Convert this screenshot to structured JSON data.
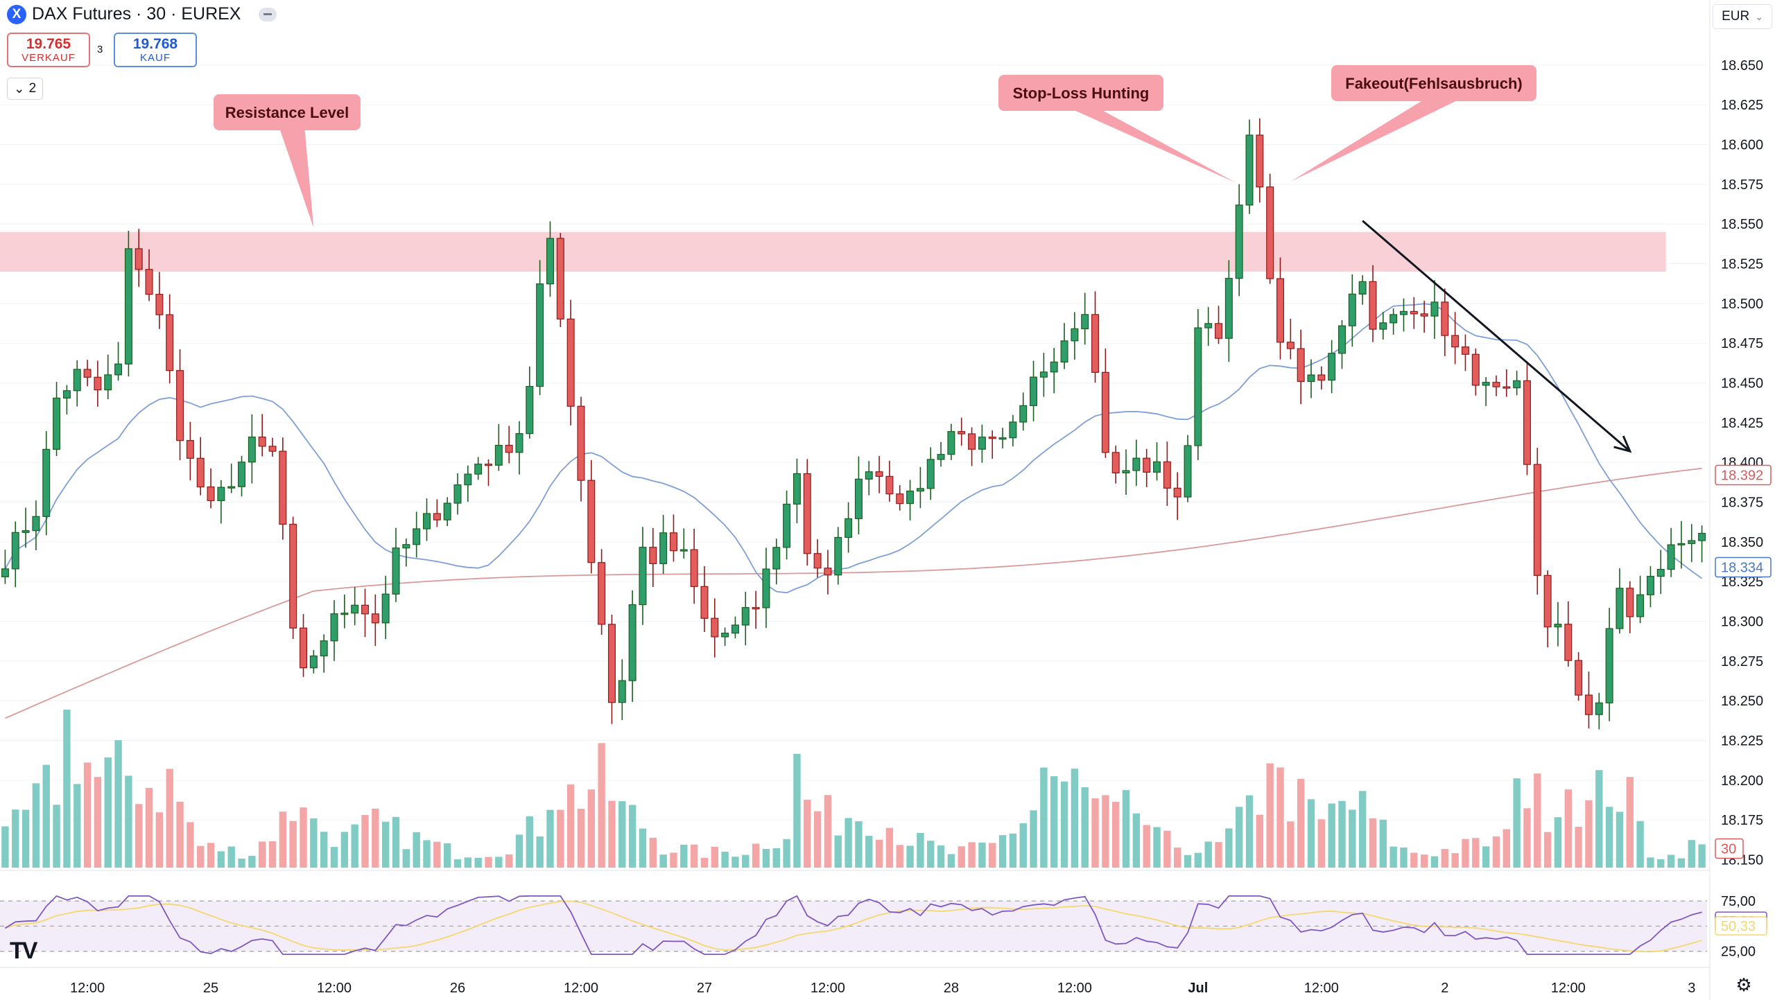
{
  "header": {
    "symbol": "DAX Futures · 30 · EUREX",
    "logo_glyph": "X",
    "sell_price": "19.765",
    "sell_label": "VERKAUF",
    "spread": "3",
    "buy_price": "19.768",
    "buy_label": "KAUF",
    "layers_count": "2",
    "currency": "EUR",
    "collapse_icon": "minus-icon",
    "layers_icon": "chevron-down-icon",
    "settings_icon": "gear-icon",
    "watermark": "TV"
  },
  "colors": {
    "up": "#26a69a",
    "up_body": "#2e7d32",
    "down": "#ef5350",
    "down_body": "#b71c1c",
    "volume_up": "#80cbc4",
    "volume_down": "#f4a6a6",
    "ma_fast": "#7e9fd6",
    "ma_slow": "#d99a9a",
    "rsi": "#7e57c2",
    "rsi_ma": "#f5d76e",
    "zone": "#f8c8cf",
    "callout": "#f7a1ac"
  },
  "chart_data": {
    "type": "candlestick",
    "price_axis": {
      "ticks": [
        "18.650",
        "18.625",
        "18.600",
        "18.575",
        "18.550",
        "18.525",
        "18.500",
        "18.475",
        "18.450",
        "18.425",
        "18.400",
        "18.375",
        "18.350",
        "18.325",
        "18.300",
        "18.275",
        "18.250",
        "18.225",
        "18.200",
        "18.175",
        "18.150"
      ],
      "range": [
        18145,
        18670
      ],
      "last_price_labels": [
        {
          "text": "18.392",
          "value": 18392,
          "color": "#d95b5b"
        },
        {
          "text": "18.334",
          "value": 18334,
          "color": "#4a78c9"
        },
        {
          "text": "30",
          "value": 18157,
          "color": "#d95b5b"
        }
      ]
    },
    "time_axis": {
      "labels": [
        {
          "text": "12:00",
          "bar": 8
        },
        {
          "text": "25",
          "bar": 20
        },
        {
          "text": "12:00",
          "bar": 32
        },
        {
          "text": "26",
          "bar": 44
        },
        {
          "text": "12:00",
          "bar": 56
        },
        {
          "text": "27",
          "bar": 68
        },
        {
          "text": "12:00",
          "bar": 80
        },
        {
          "text": "28",
          "bar": 92
        },
        {
          "text": "12:00",
          "bar": 104
        },
        {
          "text": "Jul",
          "bar": 116
        },
        {
          "text": "12:00",
          "bar": 128
        },
        {
          "text": "2",
          "bar": 140
        },
        {
          "text": "12:00",
          "bar": 152
        },
        {
          "text": "3",
          "bar": 164
        }
      ]
    },
    "anchors": [
      [
        0,
        18340
      ],
      [
        3,
        18370
      ],
      [
        5,
        18440
      ],
      [
        7,
        18455
      ],
      [
        9,
        18445
      ],
      [
        11,
        18460
      ],
      [
        12,
        18530
      ],
      [
        13,
        18525
      ],
      [
        15,
        18490
      ],
      [
        17,
        18420
      ],
      [
        18,
        18400
      ],
      [
        20,
        18370
      ],
      [
        22,
        18390
      ],
      [
        24,
        18410
      ],
      [
        26,
        18405
      ],
      [
        27,
        18360
      ],
      [
        28,
        18290
      ],
      [
        29,
        18265
      ],
      [
        30,
        18280
      ],
      [
        32,
        18300
      ],
      [
        34,
        18315
      ],
      [
        36,
        18300
      ],
      [
        37,
        18320
      ],
      [
        38,
        18340
      ],
      [
        40,
        18355
      ],
      [
        42,
        18370
      ],
      [
        44,
        18385
      ],
      [
        46,
        18400
      ],
      [
        48,
        18405
      ],
      [
        50,
        18420
      ],
      [
        51,
        18450
      ],
      [
        52,
        18510
      ],
      [
        53,
        18535
      ],
      [
        54,
        18490
      ],
      [
        55,
        18440
      ],
      [
        56,
        18390
      ],
      [
        57,
        18340
      ],
      [
        58,
        18300
      ],
      [
        59,
        18250
      ],
      [
        60,
        18265
      ],
      [
        61,
        18310
      ],
      [
        62,
        18345
      ],
      [
        63,
        18340
      ],
      [
        64,
        18350
      ],
      [
        66,
        18340
      ],
      [
        68,
        18300
      ],
      [
        69,
        18290
      ],
      [
        71,
        18295
      ],
      [
        73,
        18310
      ],
      [
        75,
        18350
      ],
      [
        77,
        18395
      ],
      [
        78,
        18345
      ],
      [
        80,
        18325
      ],
      [
        82,
        18370
      ],
      [
        84,
        18400
      ],
      [
        86,
        18385
      ],
      [
        88,
        18375
      ],
      [
        90,
        18400
      ],
      [
        92,
        18420
      ],
      [
        95,
        18410
      ],
      [
        97,
        18410
      ],
      [
        99,
        18430
      ],
      [
        100,
        18450
      ],
      [
        102,
        18470
      ],
      [
        104,
        18490
      ],
      [
        105,
        18500
      ],
      [
        106,
        18455
      ],
      [
        107,
        18410
      ],
      [
        108,
        18390
      ],
      [
        110,
        18400
      ],
      [
        112,
        18395
      ],
      [
        114,
        18380
      ],
      [
        115,
        18405
      ],
      [
        116,
        18490
      ],
      [
        118,
        18485
      ],
      [
        119,
        18510
      ],
      [
        120,
        18560
      ],
      [
        121,
        18600
      ],
      [
        122,
        18580
      ],
      [
        123,
        18510
      ],
      [
        124,
        18480
      ],
      [
        126,
        18450
      ],
      [
        128,
        18455
      ],
      [
        130,
        18490
      ],
      [
        132,
        18520
      ],
      [
        133,
        18480
      ],
      [
        135,
        18490
      ],
      [
        137,
        18500
      ],
      [
        139,
        18495
      ],
      [
        140,
        18485
      ],
      [
        141,
        18470
      ],
      [
        143,
        18455
      ],
      [
        144,
        18445
      ],
      [
        146,
        18440
      ],
      [
        147,
        18445
      ],
      [
        148,
        18395
      ],
      [
        149,
        18330
      ],
      [
        150,
        18300
      ],
      [
        151,
        18295
      ],
      [
        152,
        18270
      ],
      [
        153,
        18255
      ],
      [
        154,
        18245
      ],
      [
        155,
        18250
      ],
      [
        156,
        18290
      ],
      [
        157,
        18320
      ],
      [
        158,
        18305
      ],
      [
        160,
        18325
      ],
      [
        162,
        18345
      ],
      [
        164,
        18355
      ],
      [
        165,
        18358
      ]
    ],
    "volume_anchors": [
      [
        0,
        20
      ],
      [
        5,
        60
      ],
      [
        6,
        100
      ],
      [
        9,
        60
      ],
      [
        12,
        65
      ],
      [
        15,
        55
      ],
      [
        16,
        60
      ],
      [
        19,
        15
      ],
      [
        22,
        12
      ],
      [
        24,
        10
      ],
      [
        26,
        25
      ],
      [
        28,
        40
      ],
      [
        29,
        55
      ],
      [
        30,
        30
      ],
      [
        33,
        20
      ],
      [
        36,
        30
      ],
      [
        40,
        20
      ],
      [
        44,
        10
      ],
      [
        48,
        12
      ],
      [
        52,
        30
      ],
      [
        53,
        60
      ],
      [
        55,
        50
      ],
      [
        58,
        60
      ],
      [
        60,
        40
      ],
      [
        62,
        30
      ],
      [
        64,
        15
      ],
      [
        68,
        10
      ],
      [
        72,
        12
      ],
      [
        76,
        25
      ],
      [
        77,
        70
      ],
      [
        78,
        45
      ],
      [
        80,
        35
      ],
      [
        84,
        40
      ],
      [
        86,
        30
      ],
      [
        88,
        20
      ],
      [
        92,
        10
      ],
      [
        96,
        15
      ],
      [
        100,
        40
      ],
      [
        101,
        70
      ],
      [
        103,
        50
      ],
      [
        104,
        60
      ],
      [
        106,
        40
      ],
      [
        108,
        35
      ],
      [
        110,
        40
      ],
      [
        112,
        20
      ],
      [
        116,
        12
      ],
      [
        118,
        15
      ],
      [
        120,
        30
      ],
      [
        122,
        50
      ],
      [
        123,
        95
      ],
      [
        124,
        55
      ],
      [
        126,
        45
      ],
      [
        128,
        30
      ],
      [
        130,
        45
      ],
      [
        132,
        40
      ],
      [
        134,
        25
      ],
      [
        136,
        12
      ],
      [
        138,
        10
      ],
      [
        140,
        12
      ],
      [
        146,
        20
      ],
      [
        147,
        95
      ],
      [
        148,
        50
      ],
      [
        150,
        45
      ],
      [
        152,
        60
      ],
      [
        154,
        40
      ],
      [
        156,
        60
      ],
      [
        158,
        45
      ],
      [
        160,
        10
      ],
      [
        162,
        8
      ],
      [
        164,
        15
      ]
    ],
    "rsi": {
      "levels": [
        {
          "text": "75,00",
          "value": 75
        },
        {
          "text": "25,00",
          "value": 25
        }
      ],
      "mid_level": 50,
      "range": [
        20,
        82
      ],
      "current": [
        {
          "text": "55,09",
          "value": 55.09,
          "color": "#7e57c2"
        },
        {
          "text": "50,33",
          "value": 50.33,
          "color": "#f5d76e"
        }
      ]
    }
  },
  "annotations": {
    "resistance_label": "Resistance Level",
    "stoploss_label": "Stop-Loss Hunting",
    "fakeout_label": "Fakeout(Fehlsausbruch)",
    "zone": {
      "from": 18520,
      "to": 18545,
      "bar_start": 0,
      "bar_end": 162
    },
    "resistance_pointer_bar": 30,
    "stoploss_pointer_bar": 120,
    "fakeout_pointer_bar": 125,
    "trend_arrow": {
      "from": [
        132,
        18552
      ],
      "to": [
        158,
        18407
      ]
    }
  }
}
